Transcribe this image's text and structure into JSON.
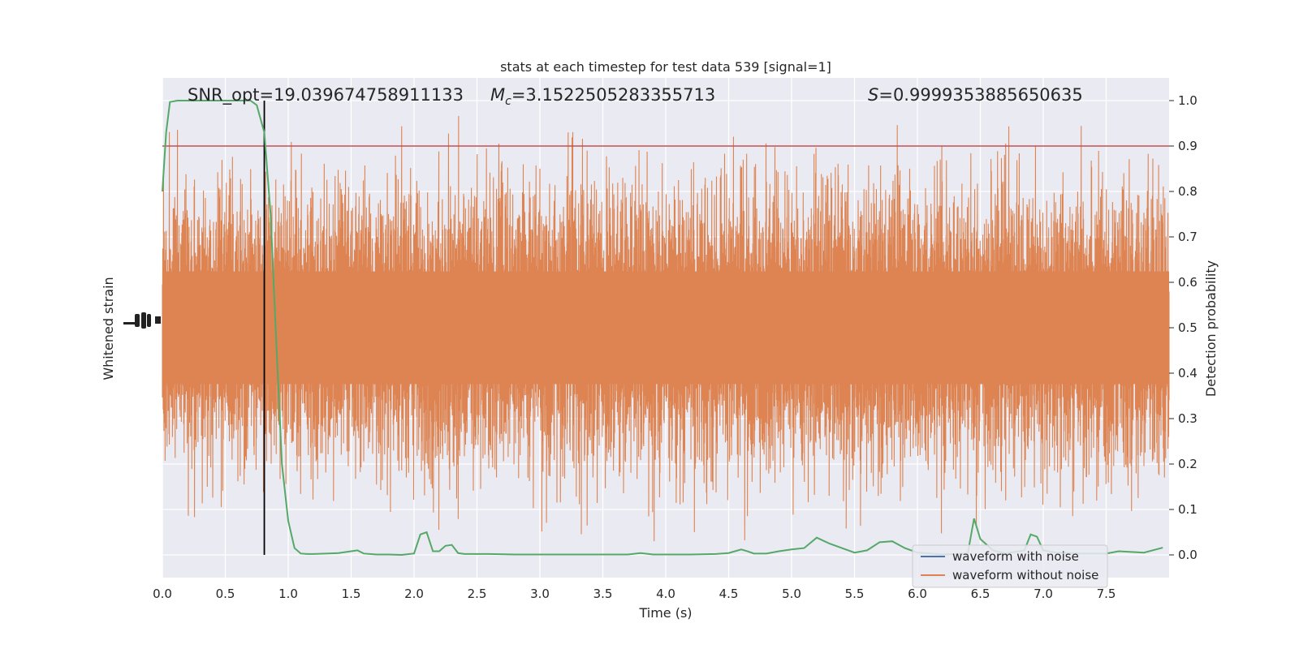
{
  "chart_data": {
    "type": "line",
    "title": "stats at each timestep for test data 539 [signal=1]",
    "xlabel": "Time (s)",
    "ylabel_left": "Whitened strain",
    "ylabel_right": "Detection probability",
    "xlim": [
      0.0,
      8.0
    ],
    "ylim_right": [
      -0.05,
      1.05
    ],
    "grid": true,
    "legend_placement": "lower-right",
    "x_ticks": [
      0.0,
      0.5,
      1.0,
      1.5,
      2.0,
      2.5,
      3.0,
      3.5,
      4.0,
      4.5,
      5.0,
      5.5,
      6.0,
      6.5,
      7.0,
      7.5
    ],
    "x_tick_labels": [
      "0.0",
      "0.5",
      "1.0",
      "1.5",
      "2.0",
      "2.5",
      "3.0",
      "3.5",
      "4.0",
      "4.5",
      "5.0",
      "5.5",
      "6.0",
      "6.5",
      "7.0",
      "7.5"
    ],
    "y_right_ticks": [
      0.0,
      0.1,
      0.2,
      0.3,
      0.4,
      0.5,
      0.6,
      0.7,
      0.8,
      0.9,
      1.0
    ],
    "y_right_tick_labels": [
      "0.0",
      "0.1",
      "0.2",
      "0.3",
      "0.4",
      "0.5",
      "0.6",
      "0.7",
      "0.8",
      "0.9",
      "1.0"
    ],
    "annotations": {
      "snr_prefix": "SNR_opt=",
      "snr_value": "19.039674758911133",
      "mc_symbol": "M",
      "mc_subscript": "c",
      "mc_value": "=3.1522505283355713",
      "s_symbol": "S",
      "s_value": "=0.9999353885650635"
    },
    "threshold": 0.9,
    "detection_time": 0.81,
    "series": [
      {
        "name": "waveform with noise",
        "color": "#4c72b0",
        "note_visible": "hidden beneath orange trace"
      },
      {
        "name": "waveform without noise",
        "color": "#dd8452",
        "band_level": 0.5,
        "band_half_width": 0.2
      },
      {
        "color": "#55a868",
        "x": [
          0.0,
          0.03,
          0.06,
          0.12,
          0.2,
          0.3,
          0.4,
          0.5,
          0.6,
          0.7,
          0.75,
          0.81,
          0.86,
          0.9,
          0.95,
          1.0,
          1.05,
          1.1,
          1.15,
          1.2,
          1.3,
          1.4,
          1.5,
          1.55,
          1.6,
          1.7,
          1.8,
          1.9,
          2.0,
          2.05,
          2.1,
          2.15,
          2.2,
          2.25,
          2.3,
          2.35,
          2.4,
          2.45,
          2.5,
          2.6,
          2.8,
          3.0,
          3.2,
          3.5,
          3.7,
          3.8,
          3.9,
          4.0,
          4.2,
          4.4,
          4.5,
          4.6,
          4.65,
          4.7,
          4.8,
          4.9,
          5.0,
          5.1,
          5.2,
          5.3,
          5.5,
          5.6,
          5.7,
          5.8,
          5.9,
          6.0,
          6.2,
          6.4,
          6.45,
          6.5,
          6.6,
          6.7,
          6.85,
          6.9,
          6.95,
          7.0,
          7.1,
          7.3,
          7.5,
          7.6,
          7.8,
          7.95
        ],
        "y": [
          0.8,
          0.93,
          0.997,
          1.0,
          1.0,
          1.0,
          1.0,
          1.0,
          1.0,
          1.0,
          0.99,
          0.93,
          0.75,
          0.5,
          0.2,
          0.075,
          0.015,
          0.003,
          0.002,
          0.002,
          0.003,
          0.004,
          0.008,
          0.01,
          0.003,
          0.001,
          0.001,
          0.0,
          0.003,
          0.045,
          0.05,
          0.008,
          0.008,
          0.02,
          0.022,
          0.004,
          0.002,
          0.002,
          0.002,
          0.002,
          0.001,
          0.001,
          0.001,
          0.001,
          0.001,
          0.004,
          0.001,
          0.001,
          0.001,
          0.002,
          0.004,
          0.012,
          0.008,
          0.003,
          0.003,
          0.008,
          0.012,
          0.015,
          0.038,
          0.025,
          0.005,
          0.01,
          0.028,
          0.03,
          0.015,
          0.005,
          0.001,
          0.003,
          0.08,
          0.035,
          0.01,
          0.003,
          0.01,
          0.045,
          0.04,
          0.01,
          0.005,
          0.003,
          0.003,
          0.008,
          0.005,
          0.016
        ]
      }
    ]
  }
}
